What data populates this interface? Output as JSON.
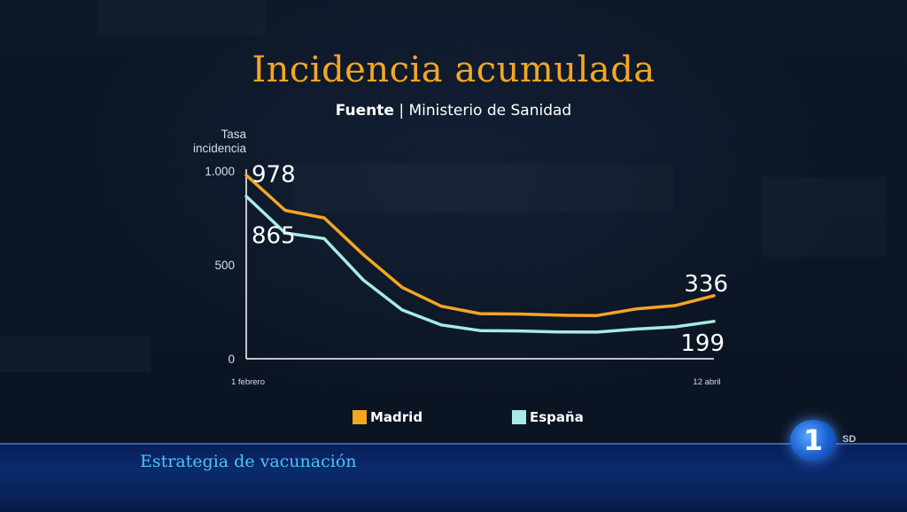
{
  "chart_data": {
    "type": "line",
    "title": "Incidencia acumulada",
    "subtitle_bold": "Fuente",
    "subtitle_rest": " | Ministerio de Sanidad",
    "ylabel": "Tasa incidencia",
    "ylim": [
      0,
      1000
    ],
    "yticks": [
      {
        "value": 0,
        "label": "0"
      },
      {
        "value": 500,
        "label": "500"
      },
      {
        "value": 1000,
        "label": "1.000"
      }
    ],
    "x_start_label": "1 febrero",
    "x_end_label": "12 abril",
    "series": [
      {
        "name": "Madrid",
        "color": "#f5a623",
        "values": [
          978,
          790,
          750,
          555,
          380,
          280,
          240,
          238,
          232,
          230,
          265,
          283,
          336
        ],
        "start_label": "978",
        "end_label": "336"
      },
      {
        "name": "España",
        "color": "#a8ebe3",
        "values": [
          865,
          670,
          640,
          420,
          260,
          180,
          150,
          148,
          143,
          142,
          158,
          170,
          199
        ],
        "start_label": "865",
        "end_label": "199"
      }
    ]
  },
  "ticker": {
    "text": "Estrategia de vacunación"
  },
  "channel": {
    "logo_number": "1",
    "quality": "SD"
  }
}
